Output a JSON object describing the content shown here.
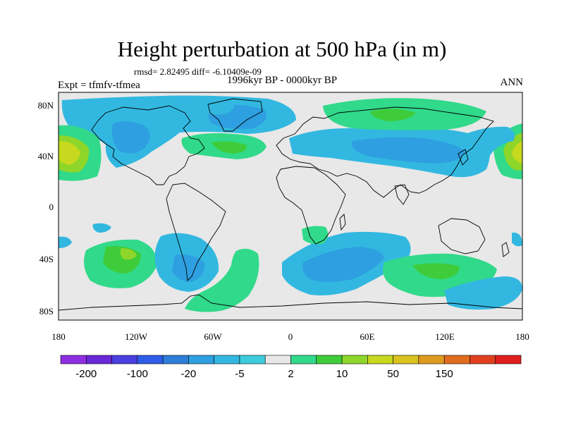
{
  "title": "Height perturbation at 500 hPa (in m)",
  "stats_text": "rmsd= 2.82495 diff= -6.10409e-09",
  "period": "1996kyr BP - 0000kyr BP",
  "experiment": "Expt = tfmfv-tfmea",
  "season": "ANN",
  "lat_labels": [
    "80N",
    "40N",
    "0",
    "40S",
    "80S"
  ],
  "lon_labels": [
    "180",
    "120W",
    "60W",
    "0",
    "60E",
    "120E",
    "180"
  ],
  "colorbar": {
    "colors": [
      "#8d2fe0",
      "#6a28d8",
      "#4a3fe0",
      "#2f5ce8",
      "#2f7ed8",
      "#2e9fe0",
      "#32b8e0",
      "#3ccbdc",
      "#e8e8e8",
      "#31d98a",
      "#3ecc3a",
      "#8ed62a",
      "#c7d91e",
      "#d9c31e",
      "#e09a1e",
      "#e06c1e",
      "#e0401e",
      "#e01e1e"
    ],
    "labels": [
      "-200",
      "-100",
      "-20",
      "-5",
      "2",
      "10",
      "50",
      "150"
    ]
  },
  "palette": {
    "neutral": "#e8e8e8",
    "light_blue": "#32b8e0",
    "mid_blue": "#2e9fe0",
    "dark_blue": "#2f7ed8",
    "light_green": "#31d98a",
    "green": "#3ecc3a",
    "yellow_green": "#8ed62a",
    "yellow": "#c7d91e"
  }
}
